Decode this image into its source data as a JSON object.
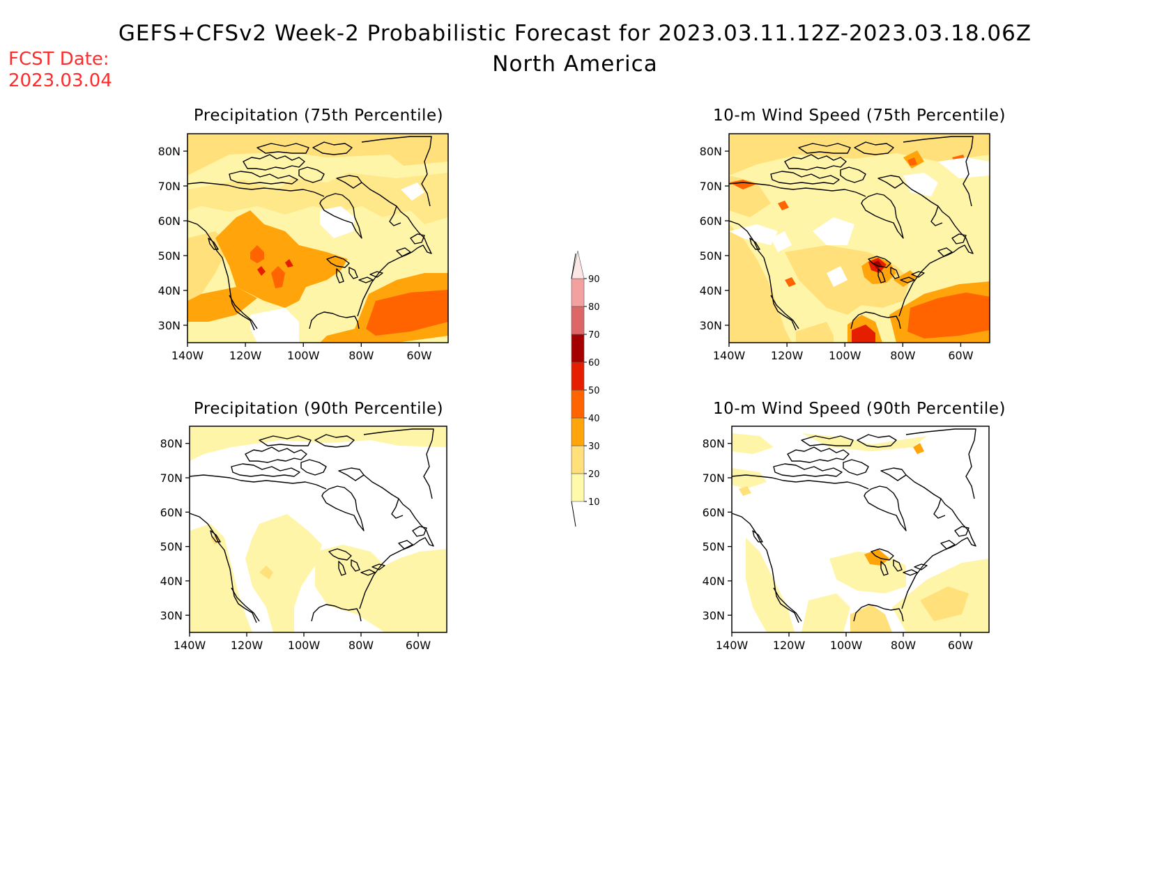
{
  "header": {
    "title_line1": "GEFS+CFSv2 Week-2 Probabilistic Forecast for 2023.03.11.12Z-2023.03.18.06Z",
    "title_line2": "North America",
    "fcst_label": "FCST Date:",
    "fcst_date": "2023.03.04"
  },
  "colors": {
    "fcst_text": "#ff2b2b",
    "levels": [
      "#fffaaa",
      "#ffe07a",
      "#ffa40a",
      "#ff6400",
      "#e61e00",
      "#a50000",
      "#dd6666",
      "#f2a0a0",
      "#fde6e6"
    ]
  },
  "axes": {
    "lat_labels": [
      "80N",
      "70N",
      "60N",
      "50N",
      "40N",
      "30N"
    ],
    "lon_labels": [
      "140W",
      "120W",
      "100W",
      "80W",
      "60W"
    ]
  },
  "panels": [
    {
      "title": "Precipitation (75th Percentile)"
    },
    {
      "title": "10-m Wind Speed (75th Percentile)"
    },
    {
      "title": "Precipitation (90th Percentile)"
    },
    {
      "title": "10-m Wind Speed (90th Percentile)"
    }
  ],
  "colorbar": {
    "labels": [
      "10",
      "20",
      "30",
      "40",
      "50",
      "60",
      "70",
      "80",
      "90"
    ]
  }
}
